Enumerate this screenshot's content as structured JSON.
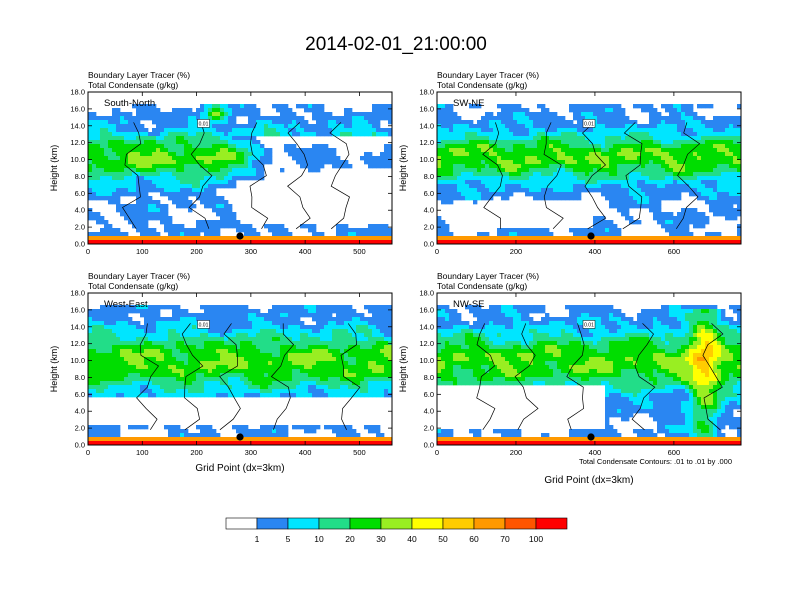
{
  "title": "2014-02-01_21:00:00",
  "panel_labels": {
    "tracer": "Boundary Layer Tracer   (%)",
    "condensate": "Total Condensate   (g/kg)"
  },
  "axis_labels": {
    "ylabel": "Height (km)",
    "xlabel": "Grid Point (dx=3km)"
  },
  "footnote": "Total Condensate Contours: .01 to .01 by .000",
  "colorbar": {
    "colors": [
      "#ffffff",
      "#2a86f2",
      "#00e5ff",
      "#22dd88",
      "#00dd00",
      "#99ee22",
      "#ffff00",
      "#ffcc00",
      "#ff9900",
      "#ff5500",
      "#ff0000"
    ],
    "labels": [
      "1",
      "5",
      "10",
      "20",
      "30",
      "40",
      "50",
      "60",
      "70",
      "100"
    ]
  },
  "contour_label": "0.01",
  "chart_data": [
    {
      "type": "heatmap",
      "name": "South-North",
      "xlabel": "",
      "ylabel": "Height (km)",
      "xlim": [
        0,
        560
      ],
      "ylim": [
        0,
        18
      ],
      "xticks": [
        "0",
        "100",
        "200",
        "300",
        "400",
        "500"
      ],
      "yticks": [
        "0.0",
        "2.0",
        "4.0",
        "6.0",
        "8.0",
        "10.0",
        "12.0",
        "14.0",
        "16.0",
        "18.0"
      ],
      "marker_x": 280
    },
    {
      "type": "heatmap",
      "name": "SW-NE",
      "xlabel": "",
      "ylabel": "Height (km)",
      "xlim": [
        0,
        770
      ],
      "ylim": [
        0,
        18
      ],
      "xticks": [
        "0",
        "200",
        "400",
        "600"
      ],
      "yticks": [
        "0.0",
        "2.0",
        "4.0",
        "6.0",
        "8.0",
        "10.0",
        "12.0",
        "14.0",
        "16.0",
        "18.0"
      ],
      "marker_x": 390
    },
    {
      "type": "heatmap",
      "name": "West-East",
      "xlabel": "Grid Point (dx=3km)",
      "ylabel": "Height (km)",
      "xlim": [
        0,
        560
      ],
      "ylim": [
        0,
        18
      ],
      "xticks": [
        "0",
        "100",
        "200",
        "300",
        "400",
        "500"
      ],
      "yticks": [
        "0.0",
        "2.0",
        "4.0",
        "6.0",
        "8.0",
        "10.0",
        "12.0",
        "14.0",
        "16.0",
        "18.0"
      ],
      "marker_x": 280
    },
    {
      "type": "heatmap",
      "name": "NW-SE",
      "xlabel": "Grid Point (dx=3km)",
      "ylabel": "Height (km)",
      "xlim": [
        0,
        770
      ],
      "ylim": [
        0,
        18
      ],
      "xticks": [
        "0",
        "200",
        "400",
        "600"
      ],
      "yticks": [
        "0.0",
        "2.0",
        "4.0",
        "6.0",
        "8.0",
        "10.0",
        "12.0",
        "14.0",
        "16.0",
        "18.0"
      ],
      "marker_x": 390
    }
  ]
}
